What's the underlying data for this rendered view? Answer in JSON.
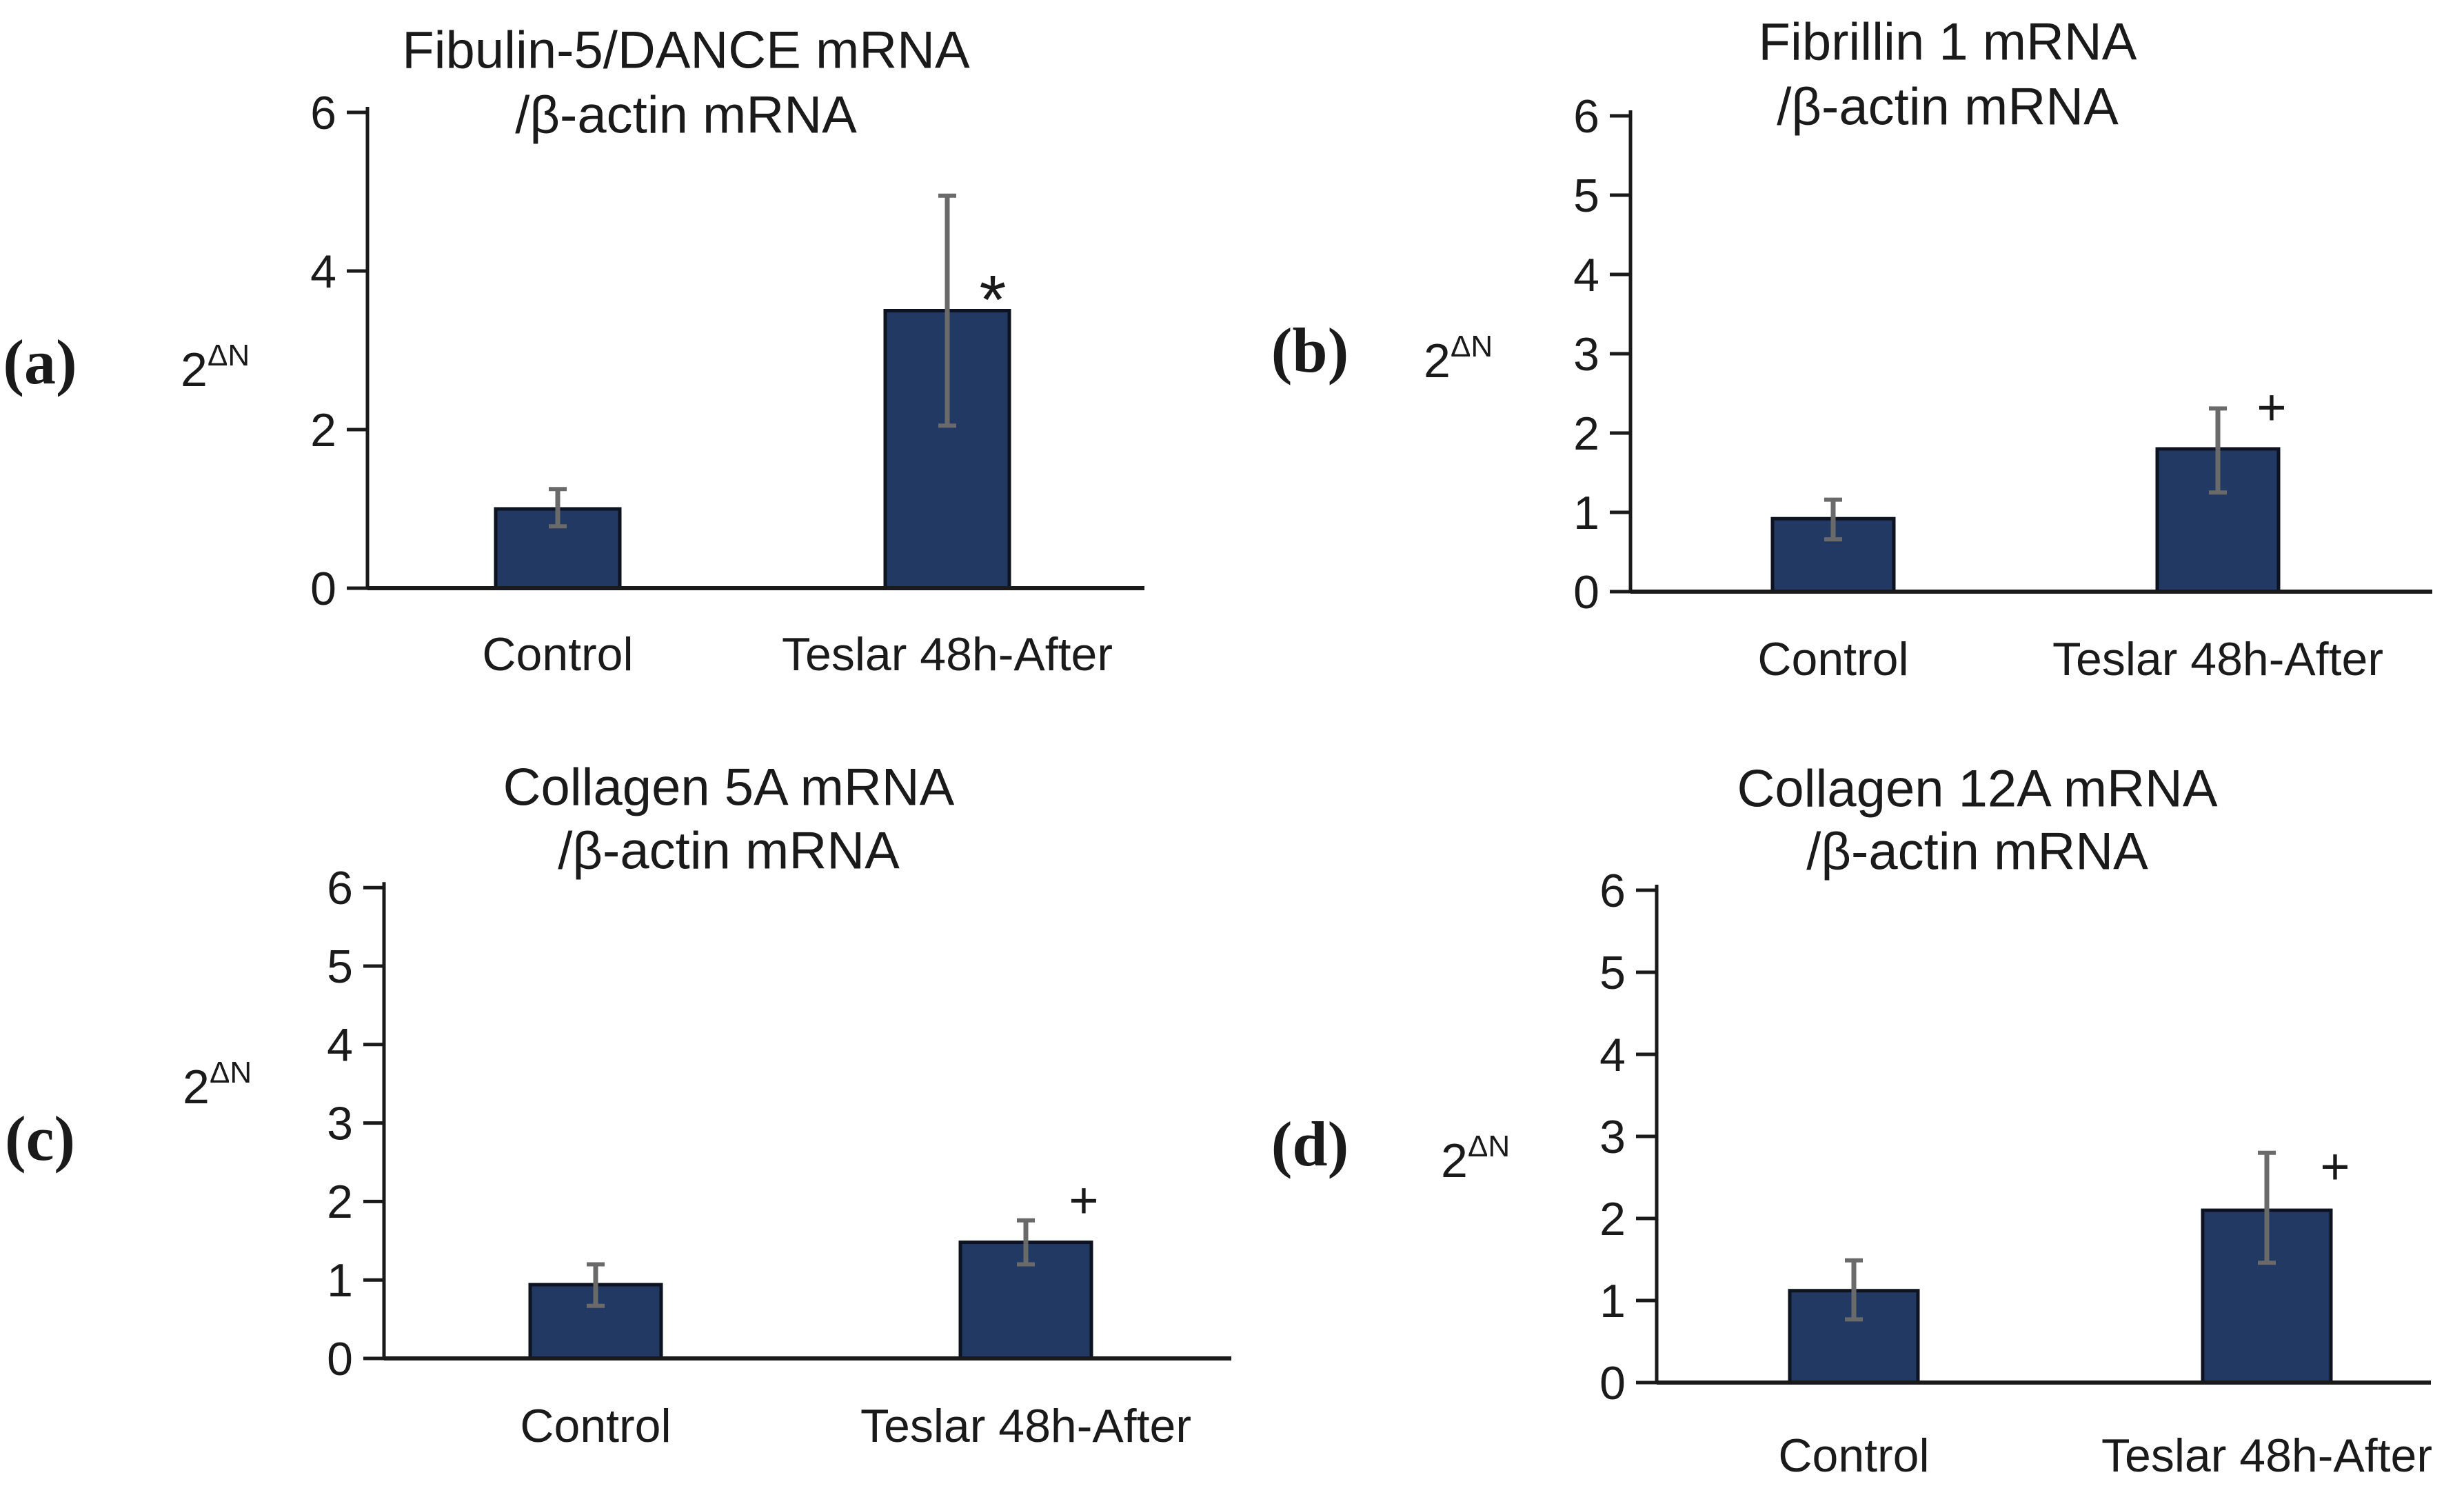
{
  "figure": {
    "background": "#ffffff",
    "n_panels": 4
  },
  "colors": {
    "bar_fill": "#223a63",
    "bar_stroke": "#0d1320",
    "error_bar": "#6a6a6a",
    "axis": "#1a1a1a",
    "text": "#1a1a1a"
  },
  "chart_data": [
    {
      "type": "bar",
      "panel_label": "(a)",
      "title_line1": "Fibulin-5/DANCE mRNA",
      "title_line2": "/β-actin mRNA",
      "ylabel_base": "2",
      "ylabel_sup": "ΔN",
      "categories": [
        "Control",
        "Teslar 48h-After"
      ],
      "values": [
        1.0,
        3.5
      ],
      "error_low": [
        0.78,
        2.05
      ],
      "error_high": [
        1.25,
        4.95
      ],
      "significance": {
        "bar_index": 1,
        "symbol": "*",
        "y": 3.95
      },
      "ylim": [
        0,
        6
      ],
      "yticks": [
        0,
        2,
        4,
        6
      ],
      "grid": false,
      "legend": false
    },
    {
      "type": "bar",
      "panel_label": "(b)",
      "title_line1": "Fibrillin 1 mRNA",
      "title_line2": "/β-actin mRNA",
      "ylabel_base": "2",
      "ylabel_sup": "ΔN",
      "categories": [
        "Control",
        "Teslar 48h-After"
      ],
      "values": [
        0.92,
        1.8
      ],
      "error_low": [
        0.66,
        1.25
      ],
      "error_high": [
        1.16,
        2.31
      ],
      "significance": {
        "bar_index": 1,
        "symbol": "+",
        "y": 2.33
      },
      "ylim": [
        0,
        6
      ],
      "yticks": [
        0,
        1,
        2,
        3,
        4,
        5,
        6
      ],
      "grid": false,
      "legend": false
    },
    {
      "type": "bar",
      "panel_label": "(c)",
      "title_line1": "Collagen 5A mRNA",
      "title_line2": "/β-actin mRNA",
      "ylabel_base": "2",
      "ylabel_sup": "ΔN",
      "categories": [
        "Control",
        "Teslar 48h-After"
      ],
      "values": [
        0.94,
        1.48
      ],
      "error_low": [
        0.67,
        1.2
      ],
      "error_high": [
        1.2,
        1.76
      ],
      "significance": {
        "bar_index": 1,
        "symbol": "+",
        "y": 2.02
      },
      "ylim": [
        0,
        6
      ],
      "yticks": [
        0,
        1,
        2,
        3,
        4,
        5,
        6
      ],
      "grid": false,
      "legend": false
    },
    {
      "type": "bar",
      "panel_label": "(d)",
      "title_line1": "Collagen 12A mRNA",
      "title_line2": "/β-actin mRNA",
      "ylabel_base": "2",
      "ylabel_sup": "ΔN",
      "categories": [
        "Control",
        "Teslar 48h-After"
      ],
      "values": [
        1.12,
        2.1
      ],
      "error_low": [
        0.77,
        1.46
      ],
      "error_high": [
        1.49,
        2.8
      ],
      "significance": {
        "bar_index": 1,
        "symbol": "+",
        "y": 2.64
      },
      "ylim": [
        0,
        6
      ],
      "yticks": [
        0,
        1,
        2,
        3,
        4,
        5,
        6
      ],
      "grid": false,
      "legend": false
    }
  ]
}
